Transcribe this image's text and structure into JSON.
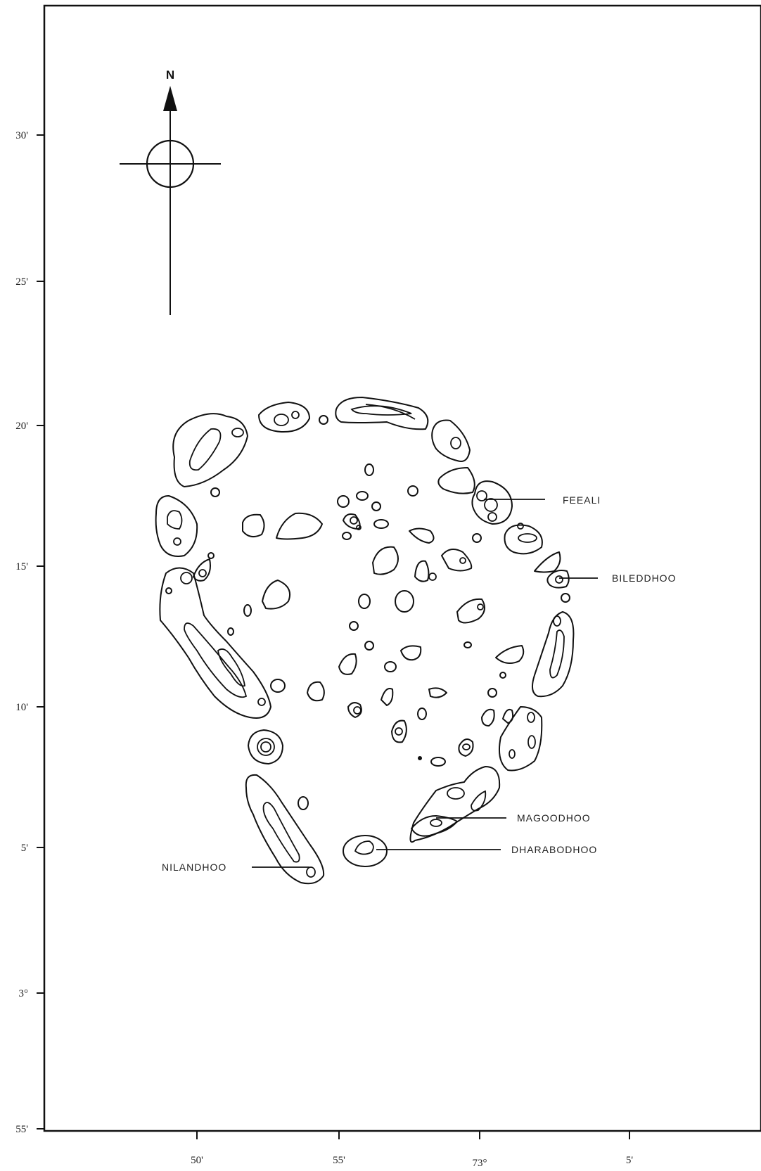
{
  "map": {
    "north_label": "N",
    "lat_ticks": [
      "30'",
      "25'",
      "20'",
      "15'",
      "10'",
      "5'",
      "3°",
      "55'"
    ],
    "lon_ticks": [
      "50'",
      "55'",
      "73°",
      "5'"
    ],
    "places": [
      {
        "name": "FEEALI"
      },
      {
        "name": "BILEDDHOO"
      },
      {
        "name": "MAGOODHOO"
      },
      {
        "name": "DHARABODHOO"
      },
      {
        "name": "NILANDHOO"
      }
    ]
  }
}
